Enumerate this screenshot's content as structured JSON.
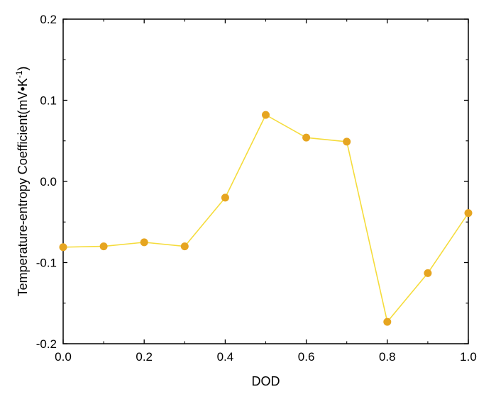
{
  "chart_data": {
    "type": "line",
    "title": "",
    "xlabel": "DOD",
    "ylabel": {
      "main": "Temperature-entropy Coefficient(mV•K",
      "superscript": "-1",
      "close": ")"
    },
    "xlim": [
      0.0,
      1.0
    ],
    "ylim": [
      -0.2,
      0.2
    ],
    "x_ticks": [
      0.0,
      0.2,
      0.4,
      0.6,
      0.8,
      1.0
    ],
    "x_tick_labels": [
      "0.0",
      "0.2",
      "0.4",
      "0.6",
      "0.8",
      "1.0"
    ],
    "y_ticks": [
      -0.2,
      -0.1,
      0.0,
      0.1,
      0.2
    ],
    "y_tick_labels": [
      "-0.2",
      "-0.1",
      "0.0",
      "0.1",
      "0.2"
    ],
    "grid": false,
    "series": [
      {
        "line_color": "#f5dc3c",
        "marker_color": "#e6a520",
        "x": [
          0.0,
          0.1,
          0.2,
          0.3,
          0.4,
          0.5,
          0.6,
          0.7,
          0.8,
          0.9,
          1.0
        ],
        "y": [
          -0.081,
          -0.08,
          -0.075,
          -0.08,
          -0.02,
          0.082,
          0.054,
          0.049,
          -0.173,
          -0.113,
          -0.039
        ]
      }
    ]
  }
}
